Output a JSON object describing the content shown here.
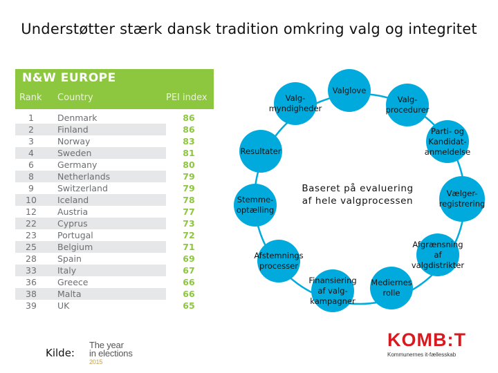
{
  "title": "Understøtter stærk dansk tradition omkring valg og integritet",
  "table": {
    "header": "N&W EUROPE",
    "columns": [
      "Rank",
      "Country",
      "PEI index"
    ],
    "rows": [
      {
        "rank": "1",
        "country": "Denmark",
        "pei": "86"
      },
      {
        "rank": "2",
        "country": "Finland",
        "pei": "86"
      },
      {
        "rank": "3",
        "country": "Norway",
        "pei": "83"
      },
      {
        "rank": "4",
        "country": "Sweden",
        "pei": "81"
      },
      {
        "rank": "6",
        "country": "Germany",
        "pei": "80"
      },
      {
        "rank": "8",
        "country": "Netherlands",
        "pei": "79"
      },
      {
        "rank": "9",
        "country": "Switzerland",
        "pei": "79"
      },
      {
        "rank": "10",
        "country": "Iceland",
        "pei": "78"
      },
      {
        "rank": "12",
        "country": "Austria",
        "pei": "77"
      },
      {
        "rank": "22",
        "country": "Cyprus",
        "pei": "73"
      },
      {
        "rank": "23",
        "country": "Portugal",
        "pei": "72"
      },
      {
        "rank": "25",
        "country": "Belgium",
        "pei": "71"
      },
      {
        "rank": "28",
        "country": "Spain",
        "pei": "69"
      },
      {
        "rank": "33",
        "country": "Italy",
        "pei": "67"
      },
      {
        "rank": "36",
        "country": "Greece",
        "pei": "66"
      },
      {
        "rank": "38",
        "country": "Malta",
        "pei": "66"
      },
      {
        "rank": "39",
        "country": "UK",
        "pei": "65"
      }
    ]
  },
  "diagram": {
    "center": [
      "Baseret på evaluering",
      "af hele valgprocessen"
    ],
    "nodes": [
      {
        "id": "valglove",
        "lines": [
          "Valglove"
        ]
      },
      {
        "id": "valgprocedurer",
        "lines": [
          "Valg-",
          "procedurer"
        ]
      },
      {
        "id": "parti",
        "lines": [
          "Parti- og",
          "Kandidat-",
          "anmeldelse"
        ]
      },
      {
        "id": "vaelgerregistrering",
        "lines": [
          "Vælger-",
          "registrering"
        ]
      },
      {
        "id": "afgraensning",
        "lines": [
          "Afgrænsning",
          "af",
          "valgdistrikter"
        ]
      },
      {
        "id": "mediernes-rolle",
        "lines": [
          "Mediernes",
          "rolle"
        ]
      },
      {
        "id": "finansiering",
        "lines": [
          "Finansiering",
          "af valg-",
          "kampagner"
        ]
      },
      {
        "id": "afstemningsprocesser",
        "lines": [
          "Afstemnings",
          "processer"
        ]
      },
      {
        "id": "stemmeoptaelling",
        "lines": [
          "Stemme-",
          "optælling"
        ]
      },
      {
        "id": "resultater",
        "lines": [
          "Resultater"
        ]
      },
      {
        "id": "valgmyndigheder",
        "lines": [
          "Valg-",
          "myndigheder"
        ]
      }
    ],
    "colors": {
      "fill": "#00aadc",
      "ring": "#00aadc",
      "text": "#111111"
    }
  },
  "source": {
    "label": "Kilde:",
    "logo_lines": [
      "The year",
      "in elections",
      "2015"
    ]
  },
  "brand": {
    "name": "KOMB:T",
    "tagline": "Kommunernes it-fællesskab",
    "color": "#d71920"
  }
}
